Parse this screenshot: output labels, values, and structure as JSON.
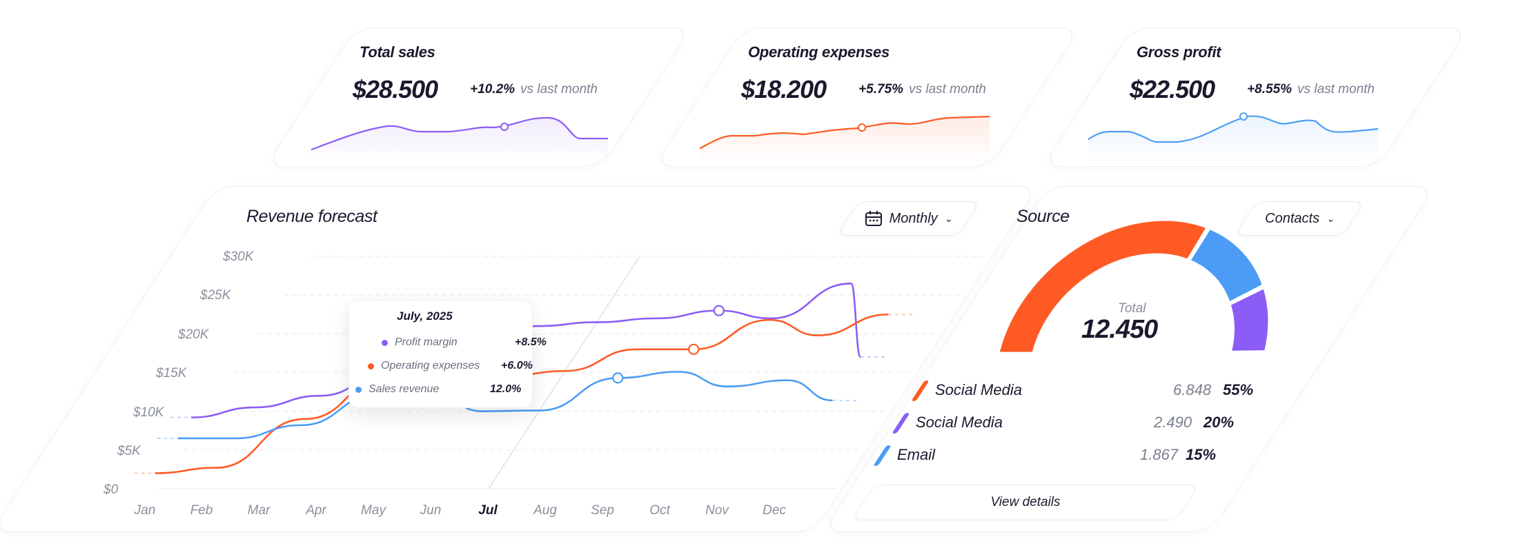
{
  "kpis": [
    {
      "title": "Total sales",
      "value": "$28.500",
      "change": "+10.2%",
      "suffix": "vs last month",
      "color": "#8b5cf6"
    },
    {
      "title": "Operating expenses",
      "value": "$18.200",
      "change": "+5.75%",
      "suffix": "vs last month",
      "color": "#ff5a24"
    },
    {
      "title": "Gross profit",
      "value": "$22.500",
      "change": "+8.55%",
      "suffix": "vs last month",
      "color": "#4c9cf5"
    }
  ],
  "forecast": {
    "title": "Revenue forecast",
    "period_label": "Monthly",
    "y_ticks": [
      "$30K",
      "$25K",
      "$20K",
      "$15K",
      "$10K",
      "$5K",
      "$0"
    ],
    "x_ticks": [
      "Jan",
      "Feb",
      "Mar",
      "Apr",
      "May",
      "Jun",
      "Jul",
      "Aug",
      "Sep",
      "Oct",
      "Nov",
      "Dec"
    ],
    "active_month": "Jul",
    "tooltip": {
      "title": "July, 2025",
      "rows": [
        {
          "label": "Profit margin",
          "value": "+8.5%",
          "color": "#8b5cf6"
        },
        {
          "label": "Operating expenses",
          "value": "+6.0%",
          "color": "#ff5a24"
        },
        {
          "label": "Sales revenue",
          "value": "12.0%",
          "color": "#4c9cf5"
        }
      ]
    }
  },
  "chart_data": {
    "type": "line",
    "categories": [
      "Jan",
      "Feb",
      "Mar",
      "Apr",
      "May",
      "Jun",
      "Jul",
      "Aug",
      "Sep",
      "Oct",
      "Nov",
      "Dec"
    ],
    "ylim": [
      0,
      30000
    ],
    "series": [
      {
        "name": "Profit margin",
        "color": "#8b5cf6",
        "values": [
          9200,
          10500,
          12000,
          15500,
          19000,
          21000,
          21500,
          22000,
          23000,
          22000,
          26500,
          17000
        ]
      },
      {
        "name": "Operating expenses",
        "color": "#ff5a24",
        "values": [
          2000,
          2700,
          9000,
          14800,
          15300,
          14500,
          15200,
          18000,
          18000,
          21800,
          19800,
          22500
        ]
      },
      {
        "name": "Sales revenue",
        "color": "#4c9cf5",
        "values": [
          6500,
          6500,
          8200,
          12100,
          12200,
          10000,
          10100,
          14300,
          15100,
          13200,
          14000,
          11400
        ]
      }
    ]
  },
  "source": {
    "title": "Source",
    "filter_label": "Contacts",
    "total_label": "Total",
    "total_value": "12.450",
    "items": [
      {
        "name": "Social Media",
        "count": "6.848",
        "pct": "55%",
        "color": "#ff5a24",
        "share": 0.55
      },
      {
        "name": "Social Media",
        "count": "2.490",
        "pct": "20%",
        "color": "#4c9cf5",
        "share": 0.2
      },
      {
        "name": "Email",
        "count": "1.867",
        "pct": "15%",
        "color": "#8b5cf6",
        "share": 0.15
      }
    ],
    "details_label": "View details"
  }
}
